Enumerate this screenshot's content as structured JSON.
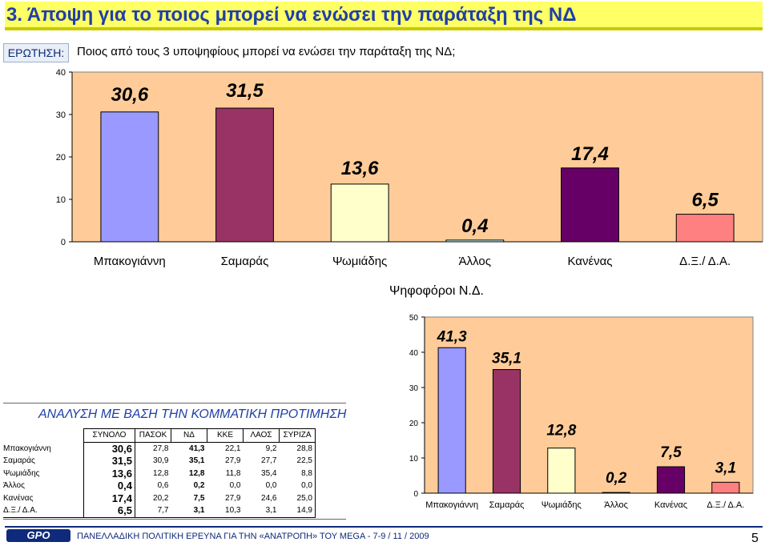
{
  "title": "3.  Άποψη για το ποιος μπορεί να ενώσει την παράταξη της ΝΔ",
  "question": {
    "label": "ΕΡΩΤΗΣΗ:",
    "text": "Ποιος από τους 3 υποψηφίους μπορεί να ενώσει την παράταξη της ΝΔ;"
  },
  "chart_data": [
    {
      "type": "bar",
      "title": "",
      "categories": [
        "Μπακογιάννη",
        "Σαμαράς",
        "Ψωμιάδης",
        "Άλλος",
        "Κανένας",
        "Δ.Ξ./ Δ.Α."
      ],
      "values": [
        30.6,
        31.5,
        13.6,
        0.4,
        17.4,
        6.5
      ],
      "labels": [
        "30,6",
        "31,5",
        "13,6",
        "0,4",
        "17,4",
        "6,5"
      ],
      "colors": [
        "#9999ff",
        "#993366",
        "#ffffcc",
        "#ccffff",
        "#660066",
        "#ff8080"
      ],
      "ylim": [
        0,
        40
      ],
      "yticks": [
        "0",
        "10",
        "20",
        "30",
        "40"
      ],
      "grid": false
    },
    {
      "type": "bar",
      "title": "Ψηφοφόροι Ν.Δ.",
      "categories": [
        "Μπακογιάννη",
        "Σαμαράς",
        "Ψωμιάδης",
        "Άλλος",
        "Κανένας",
        "Δ.Ξ./ Δ.Α."
      ],
      "values": [
        41.3,
        35.1,
        12.8,
        0.2,
        7.5,
        3.1
      ],
      "labels": [
        "41,3",
        "35,1",
        "12,8",
        "0,2",
        "7,5",
        "3,1"
      ],
      "colors": [
        "#9999ff",
        "#993366",
        "#ffffcc",
        "#ccffff",
        "#660066",
        "#ff8080"
      ],
      "ylim": [
        0,
        50
      ],
      "yticks": [
        "0",
        "10",
        "20",
        "30",
        "40",
        "50"
      ],
      "grid": false
    }
  ],
  "analysis": {
    "title": "ΑΝΑΛΥΣΗ ΜΕ ΒΑΣΗ ΤΗΝ ΚΟΜΜΑΤΙΚΗ ΠΡΟΤΙΜΗΣΗ",
    "headers": [
      "ΣΥΝΟΛΟ",
      "ΠΑΣΟΚ",
      "ΝΔ",
      "ΚΚΕ",
      "ΛΑΟΣ",
      "ΣΥΡΙΖΑ"
    ],
    "rows": [
      {
        "name": "Μπακογιάννη",
        "total": "30,6",
        "pasok": "27,8",
        "nd": "41,3",
        "kke": "22,1",
        "laos": "9,2",
        "syriza": "28,8"
      },
      {
        "name": "Σαμαράς",
        "total": "31,5",
        "pasok": "30,9",
        "nd": "35,1",
        "kke": "27,9",
        "laos": "27,7",
        "syriza": "22,5"
      },
      {
        "name": "Ψωμιάδης",
        "total": "13,6",
        "pasok": "12,8",
        "nd": "12,8",
        "kke": "11,8",
        "laos": "35,4",
        "syriza": "8,8"
      },
      {
        "name": "Άλλος",
        "total": "0,4",
        "pasok": "0,6",
        "nd": "0,2",
        "kke": "0,0",
        "laos": "0,0",
        "syriza": "0,0"
      },
      {
        "name": "Κανένας",
        "total": "17,4",
        "pasok": "20,2",
        "nd": "7,5",
        "kke": "27,9",
        "laos": "24,6",
        "syriza": "25,0"
      },
      {
        "name": "Δ.Ξ./ Δ.Α.",
        "total": "6,5",
        "pasok": "7,7",
        "nd": "3,1",
        "kke": "10,3",
        "laos": "3,1",
        "syriza": "14,9"
      }
    ]
  },
  "footer": {
    "logo": "GPO",
    "text": "ΠΑΝΕΛΛΑΔΙΚΗ ΠΟΛΙΤΙΚΗ ΕΡΕΥΝΑ ΓΙΑ ΤΗΝ «ΑΝΑΤΡΟΠΗ» ΤΟΥ MEGA  -  7-9  / 11 / 2009",
    "page": "5"
  },
  "style": {
    "plot_bg": "#ffcc99",
    "axis_color": "#000000",
    "label_color": "#000000",
    "title_color": "#1f3fa8",
    "title_bg": "#ffff66"
  }
}
